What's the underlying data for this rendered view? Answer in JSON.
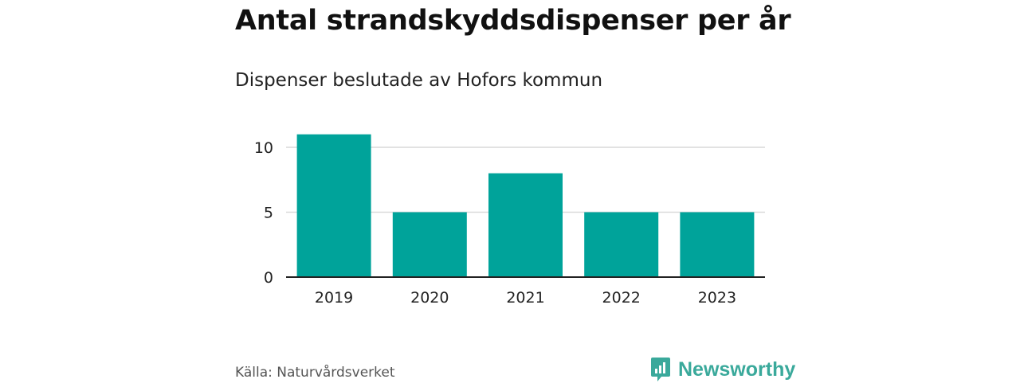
{
  "colors": {
    "bar": "#00a39a",
    "grid": "#d9d9d9",
    "axis": "#222222",
    "text": "#222222",
    "brand": "#3aa99b"
  },
  "chart_data": {
    "type": "bar",
    "title": "Antal strandskyddsdispenser per år",
    "subtitle": "Dispenser beslutade av Hofors kommun",
    "categories": [
      "2019",
      "2020",
      "2021",
      "2022",
      "2023"
    ],
    "values": [
      11,
      5,
      8,
      5,
      5
    ],
    "xlabel": "",
    "ylabel": "",
    "ylim": [
      0,
      11
    ],
    "yticks": [
      0,
      5,
      10
    ],
    "grid": true,
    "legend": "none"
  },
  "footer": {
    "source": "Källa: Naturvårdsverket",
    "brand_name": "Newsworthy",
    "brand_icon": "newsworthy-logo-icon"
  }
}
